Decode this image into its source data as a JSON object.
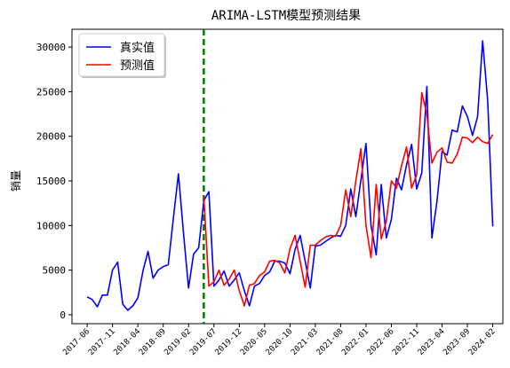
{
  "chart_data": {
    "type": "line",
    "title": "ARIMA-LSTM模型预测结果",
    "xlabel": "",
    "ylabel": "销量",
    "ylim": [
      -1000,
      32000
    ],
    "xlim": [
      "2017-03",
      "2024-04"
    ],
    "yticks": [
      0,
      5000,
      10000,
      15000,
      20000,
      25000,
      30000
    ],
    "ytick_labels": [
      "0",
      "5000",
      "10000",
      "15000",
      "20000",
      "25000",
      "30000"
    ],
    "xticks": [
      "2017-06",
      "2017-11",
      "2018-04",
      "2018-09",
      "2019-02",
      "2019-07",
      "2019-12",
      "2020-05",
      "2020-10",
      "2021-03",
      "2021-08",
      "2022-01",
      "2022-06",
      "2022-11",
      "2023-04",
      "2023-09",
      "2024-02"
    ],
    "grid": false,
    "legend_position": "top-left",
    "split_line": {
      "x": "2019-05",
      "color": "#008000",
      "style": "dashed"
    },
    "series": [
      {
        "name": "真实值",
        "color": "#0000ff",
        "start": "2017-06",
        "values": [
          2000,
          1700,
          900,
          2200,
          2200,
          5000,
          5900,
          1200,
          500,
          1000,
          1900,
          4900,
          7100,
          4100,
          5000,
          5400,
          5600,
          10800,
          15800,
          9200,
          3000,
          6800,
          7500,
          12800,
          13800,
          3200,
          3900,
          4900,
          3200,
          3900,
          4700,
          2700,
          1000,
          3200,
          3500,
          4400,
          4800,
          6000,
          6000,
          5800,
          4600,
          7300,
          8900,
          6000,
          3000,
          7700,
          7800,
          8200,
          8600,
          8900,
          8800,
          10000,
          14100,
          11000,
          15100,
          19200,
          10000,
          6700,
          14600,
          8600,
          10700,
          15300,
          14000,
          16800,
          19100,
          14100,
          15900,
          25600,
          8600,
          12700,
          18300,
          17900,
          20700,
          20500,
          23400,
          22200,
          20100,
          22200,
          30700,
          24000,
          9900
        ]
      },
      {
        "name": "预测值",
        "color": "#ff0000",
        "start": "2019-05",
        "values": [
          13200,
          3200,
          3700,
          5000,
          3300,
          4000,
          5000,
          2700,
          1000,
          3300,
          3500,
          4400,
          4800,
          6000,
          6100,
          5800,
          4700,
          7400,
          8900,
          6000,
          3100,
          7800,
          7800,
          8300,
          8700,
          8900,
          8800,
          10000,
          14000,
          11000,
          15000,
          18600,
          10000,
          6400,
          14600,
          8500,
          10500,
          15000,
          14200,
          16700,
          18800,
          14200,
          15700,
          24900,
          22500,
          17000,
          18200,
          18700,
          17100,
          17000,
          18000,
          19900,
          19800,
          19300,
          19900,
          19400,
          19200,
          20200
        ]
      }
    ]
  }
}
